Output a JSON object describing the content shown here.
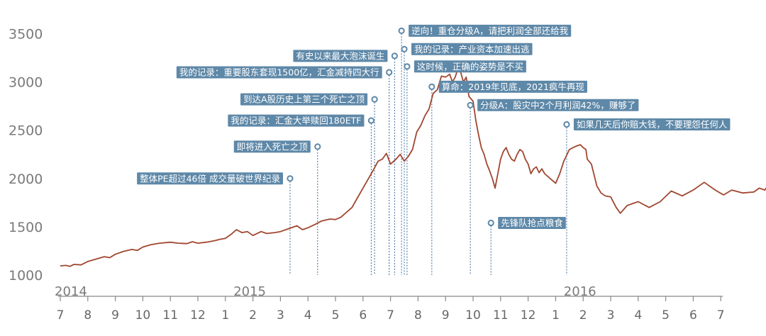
{
  "chart_data": {
    "type": "line",
    "ylim": [
      1000,
      3600
    ],
    "ytick_values": [
      1000,
      1500,
      2000,
      2500,
      3000,
      3500
    ],
    "ytick_labels": [
      "1000",
      "1500",
      "2000",
      "2500",
      "3000",
      "3500"
    ],
    "month_labels": [
      "7",
      "8",
      "9",
      "10",
      "11",
      "12",
      "1",
      "2",
      "3",
      "4",
      "5",
      "6",
      "7",
      "8",
      "9",
      "10",
      "11",
      "12",
      "1",
      "2",
      "3",
      "4",
      "5",
      "6",
      "7"
    ],
    "year_labels": [
      {
        "label": "2014",
        "at": 0
      },
      {
        "label": "2015",
        "at": 6.5
      },
      {
        "label": "2016",
        "at": 18.5
      }
    ],
    "series": [
      {
        "color": "#a0462f",
        "points": [
          [
            0,
            1095
          ],
          [
            0.2,
            1100
          ],
          [
            0.35,
            1090
          ],
          [
            0.5,
            1110
          ],
          [
            0.75,
            1105
          ],
          [
            1,
            1140
          ],
          [
            1.3,
            1165
          ],
          [
            1.6,
            1190
          ],
          [
            1.8,
            1180
          ],
          [
            2,
            1215
          ],
          [
            2.3,
            1245
          ],
          [
            2.6,
            1265
          ],
          [
            2.8,
            1255
          ],
          [
            3,
            1290
          ],
          [
            3.3,
            1315
          ],
          [
            3.6,
            1330
          ],
          [
            4,
            1340
          ],
          [
            4.3,
            1330
          ],
          [
            4.6,
            1325
          ],
          [
            4.8,
            1345
          ],
          [
            5,
            1330
          ],
          [
            5.3,
            1340
          ],
          [
            5.6,
            1355
          ],
          [
            5.8,
            1370
          ],
          [
            6,
            1380
          ],
          [
            6.2,
            1420
          ],
          [
            6.4,
            1470
          ],
          [
            6.6,
            1440
          ],
          [
            6.8,
            1450
          ],
          [
            7,
            1410
          ],
          [
            7.3,
            1450
          ],
          [
            7.5,
            1430
          ],
          [
            7.8,
            1440
          ],
          [
            8,
            1450
          ],
          [
            8.3,
            1480
          ],
          [
            8.6,
            1510
          ],
          [
            8.8,
            1470
          ],
          [
            9,
            1490
          ],
          [
            9.3,
            1530
          ],
          [
            9.5,
            1560
          ],
          [
            9.8,
            1580
          ],
          [
            10,
            1575
          ],
          [
            10.2,
            1600
          ],
          [
            10.4,
            1650
          ],
          [
            10.6,
            1700
          ],
          [
            10.8,
            1800
          ],
          [
            11,
            1900
          ],
          [
            11.2,
            2000
          ],
          [
            11.4,
            2100
          ],
          [
            11.55,
            2180
          ],
          [
            11.7,
            2200
          ],
          [
            11.85,
            2260
          ],
          [
            12,
            2150
          ],
          [
            12.2,
            2200
          ],
          [
            12.35,
            2250
          ],
          [
            12.5,
            2180
          ],
          [
            12.65,
            2230
          ],
          [
            12.8,
            2300
          ],
          [
            12.95,
            2480
          ],
          [
            13.1,
            2550
          ],
          [
            13.25,
            2650
          ],
          [
            13.4,
            2720
          ],
          [
            13.55,
            2880
          ],
          [
            13.7,
            2920
          ],
          [
            13.85,
            3060
          ],
          [
            14,
            3050
          ],
          [
            14.15,
            3080
          ],
          [
            14.25,
            3000
          ],
          [
            14.35,
            3050
          ],
          [
            14.45,
            3140
          ],
          [
            14.55,
            3100
          ],
          [
            14.65,
            3000
          ],
          [
            14.75,
            3050
          ],
          [
            14.85,
            2850
          ],
          [
            15,
            2800
          ],
          [
            15.1,
            2600
          ],
          [
            15.2,
            2450
          ],
          [
            15.3,
            2320
          ],
          [
            15.4,
            2250
          ],
          [
            15.5,
            2150
          ],
          [
            15.6,
            2080
          ],
          [
            15.7,
            2000
          ],
          [
            15.8,
            1900
          ],
          [
            15.9,
            2050
          ],
          [
            16,
            2200
          ],
          [
            16.1,
            2280
          ],
          [
            16.2,
            2320
          ],
          [
            16.3,
            2250
          ],
          [
            16.4,
            2200
          ],
          [
            16.5,
            2180
          ],
          [
            16.6,
            2250
          ],
          [
            16.7,
            2300
          ],
          [
            16.8,
            2280
          ],
          [
            16.9,
            2200
          ],
          [
            17,
            2150
          ],
          [
            17.1,
            2050
          ],
          [
            17.2,
            2100
          ],
          [
            17.3,
            2120
          ],
          [
            17.4,
            2060
          ],
          [
            17.5,
            2100
          ],
          [
            17.6,
            2050
          ],
          [
            17.8,
            2000
          ],
          [
            18,
            1950
          ],
          [
            18.15,
            2050
          ],
          [
            18.3,
            2180
          ],
          [
            18.5,
            2300
          ],
          [
            18.7,
            2330
          ],
          [
            18.9,
            2350
          ],
          [
            19,
            2320
          ],
          [
            19.1,
            2300
          ],
          [
            19.15,
            2200
          ],
          [
            19.3,
            2150
          ],
          [
            19.5,
            1920
          ],
          [
            19.65,
            1850
          ],
          [
            19.8,
            1820
          ],
          [
            20,
            1810
          ],
          [
            20.2,
            1700
          ],
          [
            20.35,
            1640
          ],
          [
            20.6,
            1720
          ],
          [
            21,
            1760
          ],
          [
            21.4,
            1700
          ],
          [
            21.8,
            1760
          ],
          [
            22.2,
            1870
          ],
          [
            22.6,
            1820
          ],
          [
            23,
            1880
          ],
          [
            23.4,
            1960
          ],
          [
            23.8,
            1880
          ],
          [
            24.1,
            1830
          ],
          [
            24.4,
            1880
          ],
          [
            24.8,
            1850
          ],
          [
            25.2,
            1860
          ],
          [
            25.4,
            1900
          ],
          [
            25.6,
            1880
          ],
          [
            25.8,
            1960
          ],
          [
            26,
            1940
          ],
          [
            26.2,
            1930
          ],
          [
            26.4,
            1970
          ],
          [
            26.6,
            1980
          ],
          [
            26.8,
            1960
          ],
          [
            27,
            1950
          ],
          [
            27.2,
            1970
          ],
          [
            27.4,
            1960
          ],
          [
            27.6,
            1960
          ],
          [
            27.8,
            1940
          ],
          [
            28,
            1880
          ],
          [
            28.2,
            1820
          ],
          [
            28.4,
            1860
          ],
          [
            28.6,
            1870
          ],
          [
            28.8,
            1860
          ],
          [
            29,
            1900
          ],
          [
            29.2,
            1930
          ],
          [
            29.4,
            1880
          ],
          [
            29.6,
            1920
          ],
          [
            29.8,
            1950
          ],
          [
            30,
            1960
          ]
        ]
      }
    ],
    "annotations": [
      {
        "text": "整体PE超过46倍 成交量破世界纪录",
        "x": 8.35,
        "y": 2000,
        "side": "left"
      },
      {
        "text": "即将进入死亡之顶",
        "x": 9.35,
        "y": 2330,
        "side": "left"
      },
      {
        "text": "我的记录：汇金大举赎回180ETF",
        "x": 11.3,
        "y": 2600,
        "side": "left"
      },
      {
        "text": "到达A股历史上第三个死亡之顶",
        "x": 11.42,
        "y": 2820,
        "side": "left"
      },
      {
        "text": "我的记录：重要股东套现1500亿，汇金减持四大行",
        "x": 11.95,
        "y": 3100,
        "side": "left"
      },
      {
        "text": "有史以来最大泡沫诞生",
        "x": 12.15,
        "y": 3270,
        "side": "left"
      },
      {
        "text": "逆向！重仓分级A，请把利润全部还给我",
        "x": 12.4,
        "y": 3530,
        "side": "right"
      },
      {
        "text": "我的记录：产业资本加速出逃",
        "x": 12.5,
        "y": 3340,
        "side": "right"
      },
      {
        "text": "这时候，正确的姿势是不买",
        "x": 12.6,
        "y": 3160,
        "side": "right"
      },
      {
        "text": "算命：2019年见底，2021疯牛再现",
        "x": 13.5,
        "y": 2950,
        "side": "right"
      },
      {
        "text": "分级A：股灾中2个月利润42%，赚够了",
        "x": 14.9,
        "y": 2760,
        "side": "right"
      },
      {
        "text": "先锋队抢点粮食",
        "x": 15.65,
        "y": 1540,
        "side": "right"
      },
      {
        "text": "如果几天后你赔大钱，不要理怨任何人",
        "x": 18.4,
        "y": 2560,
        "side": "right"
      }
    ],
    "colors": {
      "line": "#a0462f",
      "annotation_box": "#5e88a8",
      "guide": "#4a77a3"
    },
    "grid": false
  }
}
